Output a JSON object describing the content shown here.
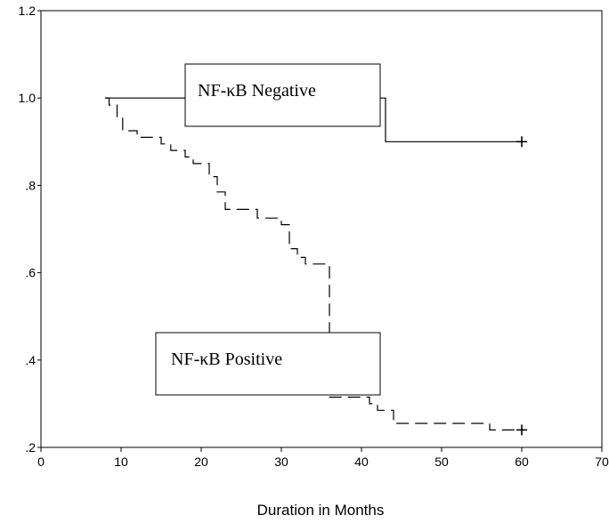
{
  "chart_data": {
    "type": "line",
    "title": "",
    "xlabel": "Duration in Months",
    "ylabel": "",
    "xlim": [
      0,
      70
    ],
    "ylim": [
      0.2,
      1.2
    ],
    "x_ticks": [
      0,
      10,
      20,
      30,
      40,
      50,
      60,
      70
    ],
    "x_tick_labels": [
      "0",
      "10",
      "20",
      "30",
      "40",
      "50",
      "60",
      "70"
    ],
    "y_ticks": [
      0.2,
      0.4,
      0.6,
      0.8,
      1.0,
      1.2
    ],
    "y_tick_labels": [
      ".2",
      ".4",
      ".6",
      ".8",
      "1.0",
      "1.2"
    ],
    "grid": false,
    "series": [
      {
        "name": "NF-κB Negative",
        "style": "solid",
        "color": "#000000",
        "censored_at": [
          60
        ],
        "steps": [
          {
            "x": 8,
            "y": 1.0
          },
          {
            "x": 43,
            "y": 0.9
          },
          {
            "x": 60,
            "y": 0.9
          }
        ]
      },
      {
        "name": "NF-κB Positive",
        "style": "dashed",
        "color": "#000000",
        "censored_at": [
          60
        ],
        "steps": [
          {
            "x": 8,
            "y": 1.0
          },
          {
            "x": 8.5,
            "y": 0.984
          },
          {
            "x": 9.5,
            "y": 0.955
          },
          {
            "x": 10.2,
            "y": 0.925
          },
          {
            "x": 12,
            "y": 0.91
          },
          {
            "x": 15,
            "y": 0.895
          },
          {
            "x": 16.2,
            "y": 0.88
          },
          {
            "x": 18,
            "y": 0.865
          },
          {
            "x": 19,
            "y": 0.85
          },
          {
            "x": 21,
            "y": 0.82
          },
          {
            "x": 22,
            "y": 0.785
          },
          {
            "x": 23,
            "y": 0.745
          },
          {
            "x": 27,
            "y": 0.725
          },
          {
            "x": 30,
            "y": 0.71
          },
          {
            "x": 31,
            "y": 0.655
          },
          {
            "x": 32,
            "y": 0.635
          },
          {
            "x": 33,
            "y": 0.62
          },
          {
            "x": 36,
            "y": 0.315
          },
          {
            "x": 41,
            "y": 0.3
          },
          {
            "x": 42,
            "y": 0.285
          },
          {
            "x": 44,
            "y": 0.255
          },
          {
            "x": 56,
            "y": 0.24
          },
          {
            "x": 60,
            "y": 0.24
          }
        ]
      }
    ],
    "annotations": [
      {
        "text": "NF-κB Negative"
      },
      {
        "text": "NF-κB Positive"
      }
    ]
  }
}
